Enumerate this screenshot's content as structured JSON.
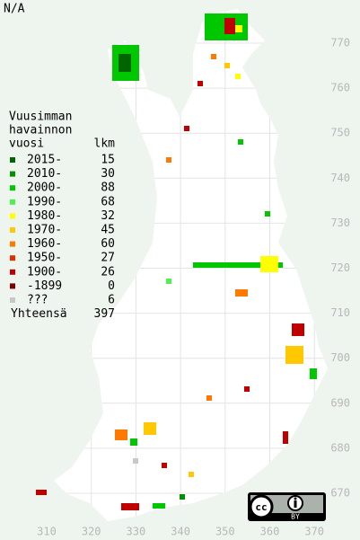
{
  "title": "N/A",
  "legend": {
    "heading": [
      "Vuusimman",
      "havainnon",
      "vuosi"
    ],
    "count_heading": "lkm",
    "rows": [
      {
        "label": "2015-",
        "count": 15,
        "color": "#006400"
      },
      {
        "label": "2010-",
        "count": 30,
        "color": "#009000"
      },
      {
        "label": "2000-",
        "count": 88,
        "color": "#00c800"
      },
      {
        "label": "1990-",
        "count": 68,
        "color": "#50f050"
      },
      {
        "label": "1980-",
        "count": 32,
        "color": "#ffff00"
      },
      {
        "label": "1970-",
        "count": 45,
        "color": "#ffc800"
      },
      {
        "label": "1960-",
        "count": 60,
        "color": "#ff7800"
      },
      {
        "label": "1950-",
        "count": 27,
        "color": "#e03000"
      },
      {
        "label": "1900-",
        "count": 26,
        "color": "#c00000"
      },
      {
        "label": "-1899",
        "count": 0,
        "color": "#800000"
      },
      {
        "label": "???",
        "count": 6,
        "color": "#c8c8c8"
      }
    ],
    "total_label": "Yhteensä",
    "total": 397
  },
  "axes": {
    "y_ticks": [
      770,
      760,
      750,
      740,
      730,
      720,
      710,
      700,
      690,
      680,
      670
    ],
    "x_ticks": [
      310,
      320,
      330,
      340,
      350,
      360,
      370
    ]
  },
  "license": {
    "cc": "cc",
    "by": "BY"
  }
}
